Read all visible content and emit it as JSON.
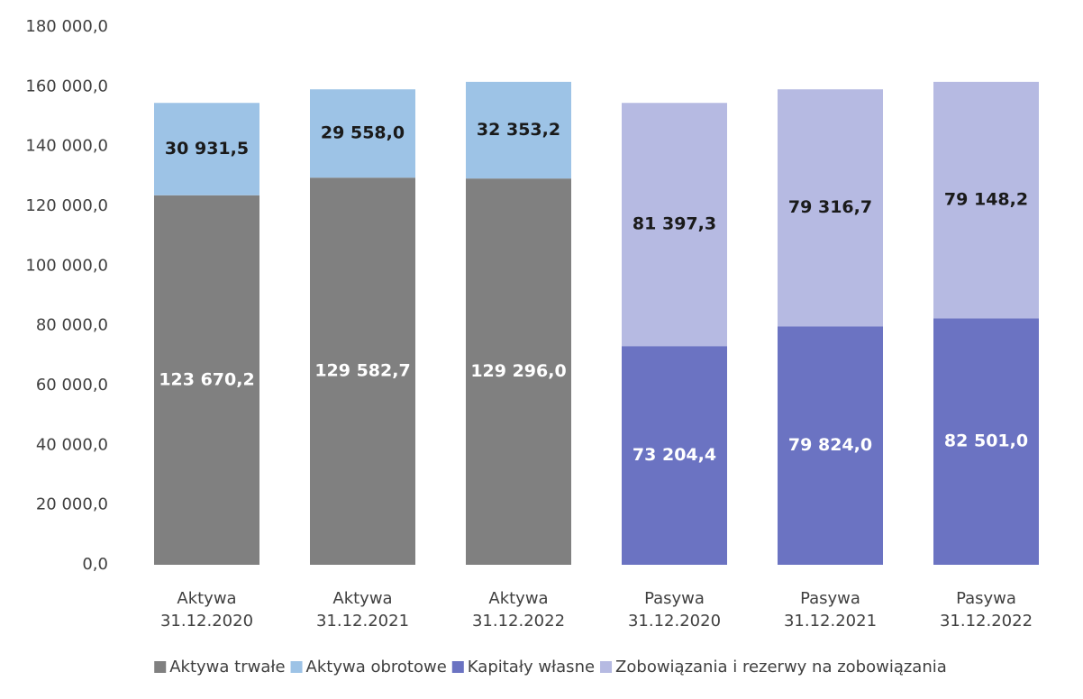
{
  "chart_data": {
    "type": "stacked_bar",
    "categories": [
      "Aktywa 31.12.2020",
      "Aktywa 31.12.2021",
      "Aktywa 31.12.2022",
      "Pasywa 31.12.2020",
      "Pasywa 31.12.2021",
      "Pasywa 31.12.2022"
    ],
    "series": [
      {
        "name": "Aktywa trwałe",
        "color": "#808080",
        "label_color": "#ffffff",
        "values": [
          123670.2,
          129582.7,
          129296.0,
          null,
          null,
          null
        ],
        "value_labels": [
          "123 670,2",
          "129 582,7",
          "129 296,0",
          null,
          null,
          null
        ]
      },
      {
        "name": "Aktywa obrotowe",
        "color": "#9dc3e6",
        "label_color": "#1a1a1a",
        "values": [
          30931.5,
          29558.0,
          32353.2,
          null,
          null,
          null
        ],
        "value_labels": [
          "30 931,5",
          "29 558,0",
          "32 353,2",
          null,
          null,
          null
        ]
      },
      {
        "name": "Kapitały własne",
        "color": "#6b73c2",
        "label_color": "#ffffff",
        "values": [
          null,
          null,
          null,
          73204.4,
          79824.0,
          82501.0
        ],
        "value_labels": [
          null,
          null,
          null,
          "73 204,4",
          "79 824,0",
          "82 501,0"
        ]
      },
      {
        "name": "Zobowiązania i rezerwy na zobowiązania",
        "color": "#b6bae2",
        "label_color": "#1a1a1a",
        "values": [
          null,
          null,
          null,
          81397.3,
          79316.7,
          79148.2
        ],
        "value_labels": [
          null,
          null,
          null,
          "81 397,3",
          "79 316,7",
          "79 148,2"
        ]
      }
    ],
    "ylim": [
      0,
      180000
    ],
    "yticks": [
      {
        "value": 0,
        "label": "0,0"
      },
      {
        "value": 20000,
        "label": "20 000,0"
      },
      {
        "value": 40000,
        "label": "40 000,0"
      },
      {
        "value": 60000,
        "label": "60 000,0"
      },
      {
        "value": 80000,
        "label": "80 000,0"
      },
      {
        "value": 100000,
        "label": "100 000,0"
      },
      {
        "value": 120000,
        "label": "120 000,0"
      },
      {
        "value": 140000,
        "label": "140 000,0"
      },
      {
        "value": 160000,
        "label": "160 000,0"
      },
      {
        "value": 180000,
        "label": "180 000,0"
      }
    ],
    "grid": false,
    "legend": "bottom"
  }
}
